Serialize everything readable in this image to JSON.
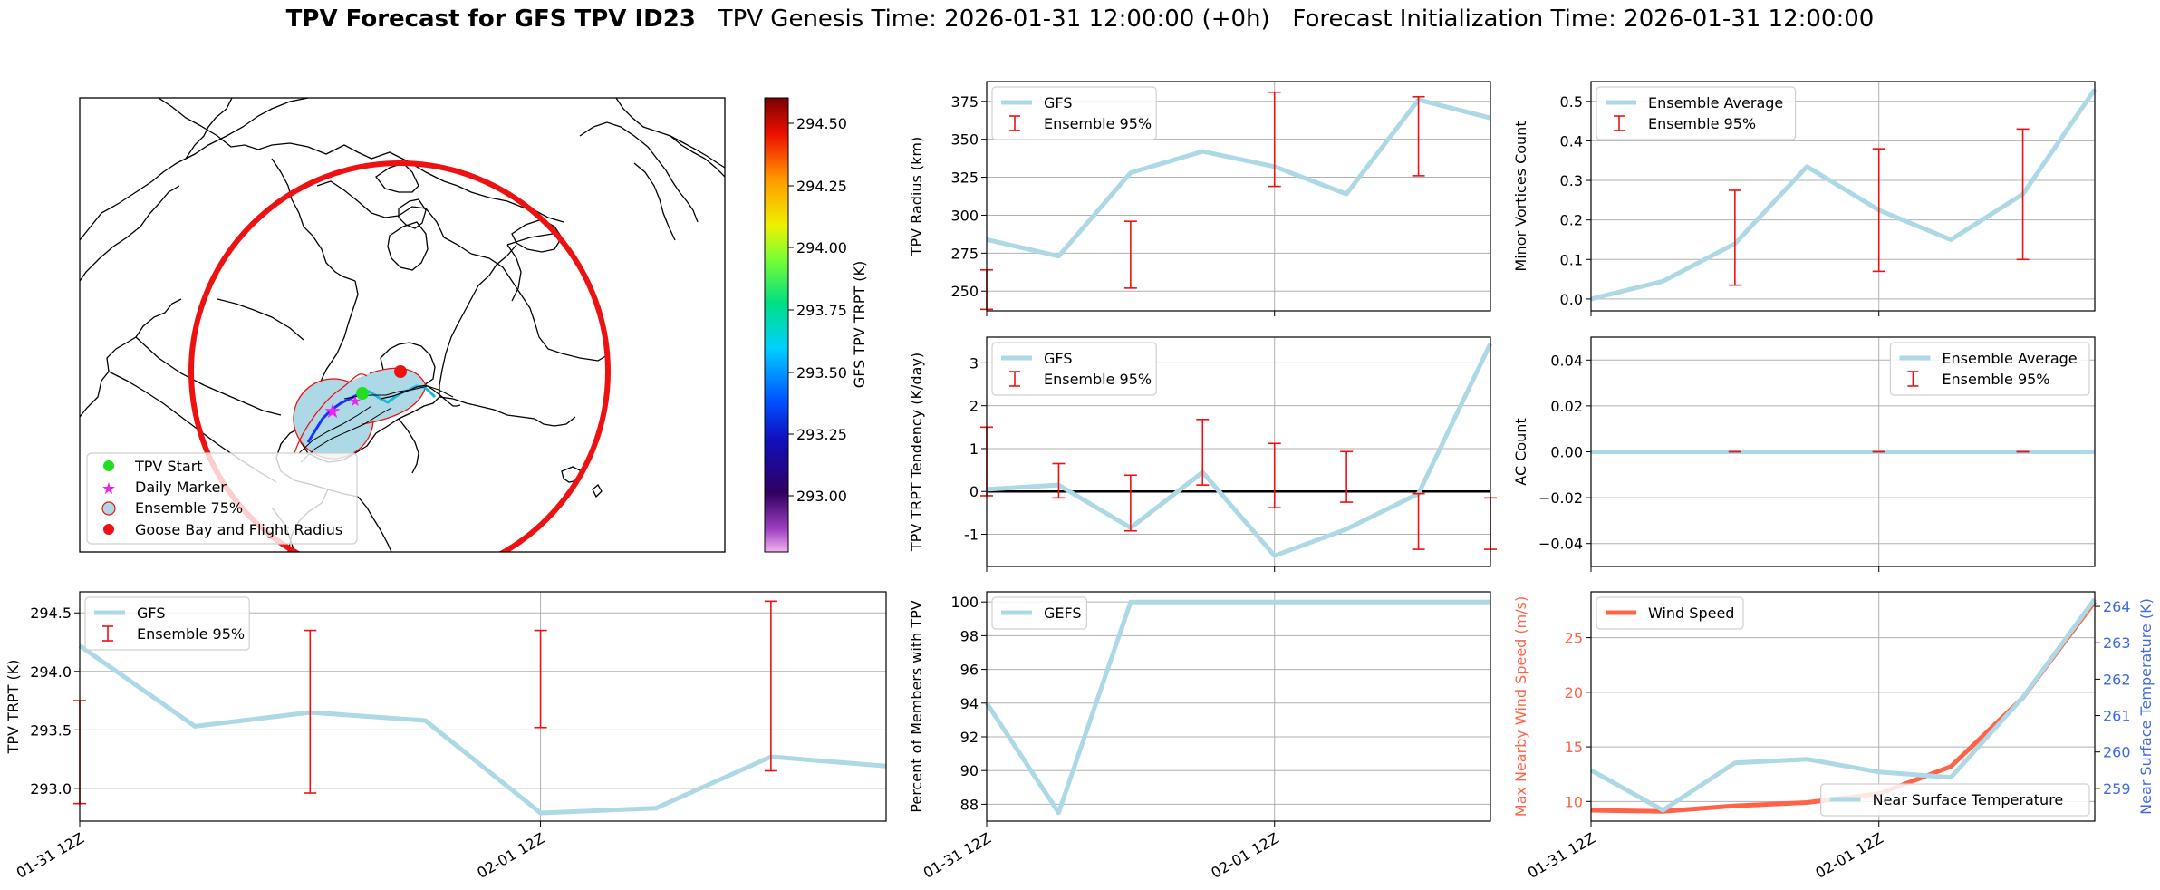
{
  "figure": {
    "title_bold": "TPV Forecast for GFS TPV ID23",
    "title_rest": "   TPV Genesis Time: 2026-01-31 12:00:00 (+0h)   Forecast Initialization Time: 2026-01-31 12:00:00"
  },
  "map": {
    "colorbar_label": "GFS TPV TRPT (K)",
    "colorbar_ticks": [
      "293.00",
      "293.25",
      "293.50",
      "293.75",
      "294.00",
      "294.25",
      "294.50"
    ],
    "legend": [
      "TPV Start",
      "Daily Marker",
      "Ensemble 75%",
      "Goose Bay and Flight Radius"
    ],
    "colors": {
      "start": "#22dd22",
      "marker": "#ee22ee",
      "ensemble_fill": "#add8e6",
      "goose_bay": "#ee1111"
    }
  },
  "chart_data": [
    {
      "id": "radius",
      "type": "line",
      "ylabel": "TPV Radius (km)",
      "ylim": [
        237,
        388
      ],
      "yticks": [
        250,
        275,
        300,
        325,
        350,
        375
      ],
      "xlim": [
        0,
        7
      ],
      "legend": [
        "GFS",
        "Ensemble 95%"
      ],
      "series": [
        {
          "name": "GFS",
          "color": "#add8e6",
          "x": [
            0,
            1,
            2,
            3,
            4,
            5,
            6,
            7
          ],
          "values": [
            284,
            273,
            328,
            342,
            332,
            314,
            376,
            364
          ]
        }
      ],
      "errorbars": [
        {
          "x": 0,
          "low": 238,
          "high": 264
        },
        {
          "x": 2,
          "low": 252,
          "high": 296
        },
        {
          "x": 4,
          "low": 319,
          "high": 381
        },
        {
          "x": 6,
          "low": 326,
          "high": 378
        }
      ]
    },
    {
      "id": "minor",
      "type": "line",
      "ylabel": "Minor Vortices Count",
      "ylim": [
        -0.03,
        0.55
      ],
      "yticks": [
        "0.0",
        "0.1",
        "0.2",
        "0.3",
        "0.4",
        "0.5"
      ],
      "xlim": [
        0,
        7
      ],
      "legend": [
        "Ensemble Average",
        "Ensemble 95%"
      ],
      "series": [
        {
          "name": "Ensemble Average",
          "color": "#add8e6",
          "x": [
            0,
            1,
            2,
            3,
            4,
            5,
            6,
            7
          ],
          "values": [
            0.0,
            0.045,
            0.14,
            0.335,
            0.225,
            0.15,
            0.265,
            0.53
          ]
        }
      ],
      "errorbars": [
        {
          "x": 2,
          "low": 0.035,
          "high": 0.275
        },
        {
          "x": 4,
          "low": 0.07,
          "high": 0.38
        },
        {
          "x": 6,
          "low": 0.1,
          "high": 0.43
        }
      ]
    },
    {
      "id": "tendency",
      "type": "line",
      "ylabel": "TPV TRPT Tendency (K/day)",
      "ylim": [
        -1.75,
        3.6
      ],
      "yticks": [
        -1,
        0,
        1,
        2,
        3
      ],
      "xlim": [
        0,
        7
      ],
      "zero_line": true,
      "legend": [
        "GFS",
        "Ensemble 95%"
      ],
      "series": [
        {
          "name": "GFS",
          "color": "#add8e6",
          "x": [
            0,
            1,
            2,
            3,
            4,
            5,
            6,
            7
          ],
          "values": [
            0.05,
            0.15,
            -0.85,
            0.45,
            -1.5,
            -0.88,
            -0.05,
            3.45
          ]
        }
      ],
      "errorbars": [
        {
          "x": 0,
          "low": -0.1,
          "high": 1.5
        },
        {
          "x": 1,
          "low": -0.15,
          "high": 0.65
        },
        {
          "x": 2,
          "low": -0.92,
          "high": 0.38
        },
        {
          "x": 3,
          "low": 0.15,
          "high": 1.68
        },
        {
          "x": 4,
          "low": -0.38,
          "high": 1.12
        },
        {
          "x": 5,
          "low": -0.25,
          "high": 0.93
        },
        {
          "x": 6,
          "low": -1.35,
          "high": -0.05
        },
        {
          "x": 7,
          "low": -1.35,
          "high": -0.15
        }
      ]
    },
    {
      "id": "ac",
      "type": "line",
      "ylabel": "AC Count",
      "ylim": [
        -0.05,
        0.05
      ],
      "yticks": [
        "−0.04",
        "−0.02",
        "0.00",
        "0.02",
        "0.04"
      ],
      "xlim": [
        0,
        7
      ],
      "legend": [
        "Ensemble Average",
        "Ensemble 95%"
      ],
      "series": [
        {
          "name": "Ensemble Average",
          "color": "#add8e6",
          "x": [
            0,
            1,
            2,
            3,
            4,
            5,
            6,
            7
          ],
          "values": [
            0,
            0,
            0,
            0,
            0,
            0,
            0,
            0
          ]
        }
      ],
      "errorbars": [
        {
          "x": 2,
          "low": 0,
          "high": 0
        },
        {
          "x": 4,
          "low": 0,
          "high": 0
        },
        {
          "x": 6,
          "low": 0,
          "high": 0
        }
      ]
    },
    {
      "id": "trpt",
      "type": "line",
      "ylabel": "TPV TRPT (K)",
      "ylim": [
        292.72,
        294.68
      ],
      "yticks": [
        "293.0",
        "293.5",
        "294.0",
        "294.5"
      ],
      "xlim": [
        0,
        7
      ],
      "xticklabels": [
        "01-31 12Z",
        "02-01 12Z"
      ],
      "legend": [
        "GFS",
        "Ensemble 95%"
      ],
      "series": [
        {
          "name": "GFS",
          "color": "#add8e6",
          "x": [
            0,
            1,
            2,
            3,
            4,
            5,
            6,
            7
          ],
          "values": [
            294.22,
            293.53,
            293.65,
            293.58,
            292.79,
            292.83,
            293.27,
            293.19
          ]
        }
      ],
      "errorbars": [
        {
          "x": 0,
          "low": 292.87,
          "high": 293.75
        },
        {
          "x": 2,
          "low": 292.96,
          "high": 294.35
        },
        {
          "x": 4,
          "low": 293.52,
          "high": 294.35
        },
        {
          "x": 6,
          "low": 293.15,
          "high": 294.6
        }
      ]
    },
    {
      "id": "members",
      "type": "line",
      "ylabel": "Percent of Members with TPV",
      "ylim": [
        87,
        100.6
      ],
      "yticks": [
        88,
        90,
        92,
        94,
        96,
        98,
        100
      ],
      "xlim": [
        0,
        7
      ],
      "xticklabels": [
        "01-31 12Z",
        "02-01 12Z"
      ],
      "legend": [
        "GEFS"
      ],
      "series": [
        {
          "name": "GEFS",
          "color": "#add8e6",
          "x": [
            0,
            1,
            2,
            3,
            4,
            5,
            6,
            7
          ],
          "values": [
            94,
            87.5,
            100,
            100,
            100,
            100,
            100,
            100
          ]
        }
      ]
    },
    {
      "id": "wind_temp",
      "type": "line",
      "ylabel": "Max Nearby Wind Speed (m/s)",
      "ylabel_right": "Near Surface Temperature (K)",
      "ylim": [
        8.2,
        29.2
      ],
      "yticks": [
        10,
        15,
        20,
        25
      ],
      "ylim_right": [
        258.1,
        264.4
      ],
      "yticks_right": [
        259,
        260,
        261,
        262,
        263,
        264
      ],
      "xlim": [
        0,
        7
      ],
      "xticklabels": [
        "01-31 12Z",
        "02-01 12Z"
      ],
      "legend": [
        "Wind Speed"
      ],
      "legend_right": [
        "Near Surface Temperature"
      ],
      "colors": {
        "left_axis": "#ff6347",
        "right_axis": "#4169e1"
      },
      "series": [
        {
          "name": "Wind Speed",
          "color": "#ff6347",
          "axis": "left",
          "x": [
            0,
            1,
            2,
            3,
            4,
            5,
            6,
            7
          ],
          "values": [
            9.2,
            9.1,
            9.6,
            9.9,
            10.7,
            13.2,
            19.5,
            28.3
          ]
        },
        {
          "name": "Near Surface Temperature",
          "color": "#add8e6",
          "axis": "right",
          "x": [
            0,
            1,
            2,
            3,
            4,
            5,
            6,
            7
          ],
          "values": [
            259.5,
            258.4,
            259.7,
            259.8,
            259.45,
            259.3,
            261.5,
            264.2
          ]
        }
      ]
    }
  ]
}
